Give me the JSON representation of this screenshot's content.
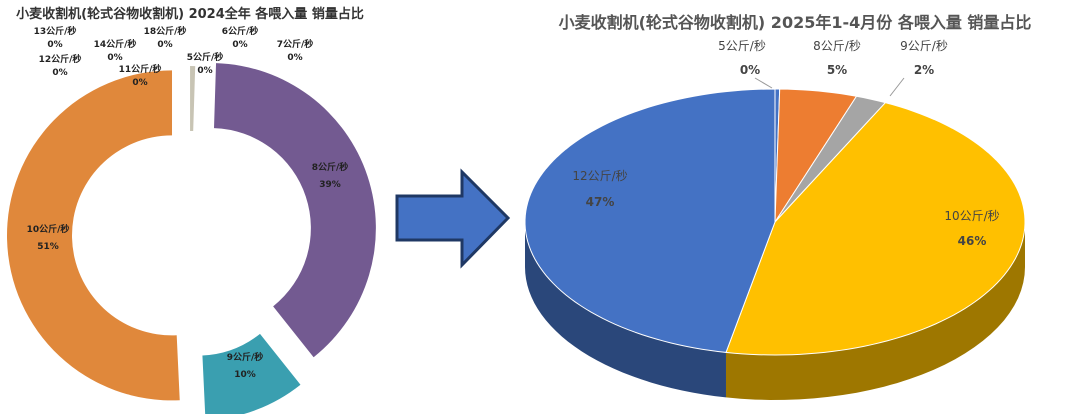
{
  "chart_data": [
    {
      "type": "donut",
      "title": "小麦收割机(轮式谷物收割机)  2024全年  各喂入量  销量占比",
      "categories": [
        "5公斤/秒",
        "8公斤/秒",
        "9公斤/秒",
        "10公斤/秒",
        "11公斤/秒",
        "12公斤/秒",
        "13公斤/秒",
        "14公斤/秒",
        "18公斤/秒",
        "6公斤/秒",
        "7公斤/秒"
      ],
      "values": [
        0.5,
        39,
        10,
        51,
        0,
        0,
        0,
        0,
        0,
        0,
        0
      ],
      "labels": [
        "0%",
        "39%",
        "10%",
        "51%",
        "0%",
        "0%",
        "0%",
        "0%",
        "0%",
        "0%",
        "0%"
      ],
      "colors": [
        "#c8c4b4",
        "#735a91",
        "#3a9fb0",
        "#e0883b"
      ],
      "exploded": true
    },
    {
      "type": "pie",
      "style": "3d",
      "title": "小麦收割机(轮式谷物收割机)  2025年1-4月份  各喂入量  销量占比",
      "categories": [
        "5公斤/秒",
        "8公斤/秒",
        "9公斤/秒",
        "10公斤/秒",
        "12公斤/秒"
      ],
      "values": [
        0.3,
        5,
        2,
        46,
        47
      ],
      "labels": [
        "0%",
        "5%",
        "2%",
        "46%",
        "47%"
      ],
      "colors": [
        "#4472c4",
        "#ed7d31",
        "#a5a5a5",
        "#ffc000",
        "#4472c4"
      ]
    }
  ],
  "arrow": {
    "color": "#4472c4",
    "border": "#1f3864",
    "icon": "right-arrow"
  }
}
